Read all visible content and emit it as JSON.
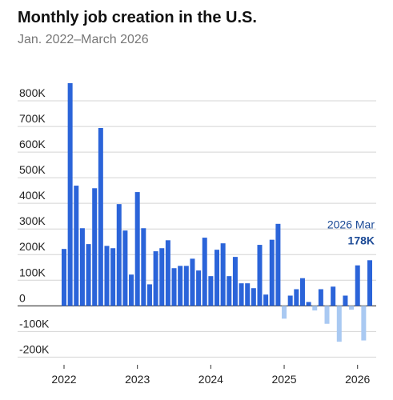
{
  "chart_data": {
    "type": "bar",
    "title": "Monthly job creation in the U.S.",
    "subtitle": "Jan. 2022–March 2026",
    "categories": [
      "2022",
      null,
      null,
      null,
      null,
      null,
      null,
      null,
      null,
      null,
      null,
      null,
      "2023",
      null,
      null,
      null,
      null,
      null,
      null,
      null,
      null,
      null,
      null,
      null,
      "2024",
      null,
      null,
      null,
      null,
      null,
      null,
      null,
      null,
      null,
      null,
      null,
      "2025",
      null,
      null,
      null,
      null,
      null,
      null,
      null,
      null,
      null,
      null,
      null,
      "2026",
      null,
      null
    ],
    "values": [
      222000,
      869000,
      469000,
      303000,
      241000,
      459000,
      694000,
      234000,
      225000,
      397000,
      294000,
      122000,
      444000,
      303000,
      84000,
      213000,
      225000,
      256000,
      147000,
      156000,
      156000,
      184000,
      138000,
      266000,
      116000,
      219000,
      244000,
      116000,
      191000,
      88000,
      88000,
      69000,
      238000,
      44000,
      258000,
      320000,
      -50000,
      40000,
      65000,
      108000,
      15000,
      -18000,
      65000,
      -70000,
      75000,
      -140000,
      40000,
      -15000,
      158000,
      -135000,
      178000
    ],
    "value_labels": [
      null,
      null,
      null,
      null,
      null,
      null,
      null,
      null,
      null,
      null,
      null,
      null,
      null,
      null,
      null,
      null,
      null,
      null,
      null,
      null,
      null,
      null,
      null,
      null,
      null,
      null,
      null,
      null,
      null,
      null,
      null,
      null,
      null,
      null,
      null,
      null,
      null,
      null,
      null,
      null,
      null,
      null,
      null,
      null,
      null,
      null,
      null,
      null,
      null,
      null,
      "178K"
    ],
    "annotation": "2026 Mar",
    "colors": {
      "positive": "#2b64d9",
      "negative": "#a9c9f2"
    },
    "ylim": [
      -230000,
      900000
    ],
    "yticks": [
      {
        "value": -200000,
        "label": "-200K"
      },
      {
        "value": -100000,
        "label": "-100K"
      },
      0,
      {
        "value": 100000,
        "label": "100K"
      },
      {
        "value": 200000,
        "label": "200K"
      },
      {
        "value": 300000,
        "label": "300K"
      },
      {
        "value": 400000,
        "label": "400K"
      },
      {
        "value": 500000,
        "label": "500K"
      },
      {
        "value": 600000,
        "label": "600K"
      },
      {
        "value": 700000,
        "label": "700K"
      },
      {
        "value": 800000,
        "label": "800K"
      }
    ],
    "grid": true
  }
}
